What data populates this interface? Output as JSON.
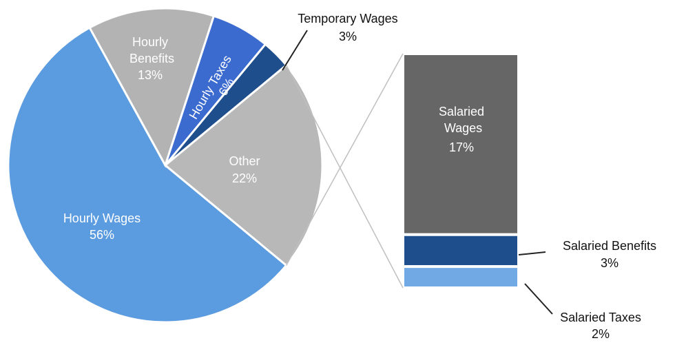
{
  "chart_data": {
    "type": "pie",
    "categories": [
      "Hourly Wages",
      "Hourly Benefits",
      "Hourly Taxes",
      "Temporary Wages",
      "Other"
    ],
    "values": [
      56,
      13,
      6,
      3,
      22
    ],
    "value_labels": [
      "56%",
      "13%",
      "6%",
      "3%",
      "22%"
    ],
    "colors": [
      "#5b9be0",
      "#b3b3b3",
      "#3c6bd0",
      "#1f4e8c",
      "#b8b8b8"
    ],
    "breakout": {
      "categories": [
        "Salaried Wages",
        "Salaried Benefits",
        "Salaried Taxes"
      ],
      "values": [
        17,
        3,
        2
      ],
      "value_labels": [
        "17%",
        "3%",
        "2%"
      ],
      "colors": [
        "#666666",
        "#1f4e8c",
        "#70a9e3"
      ]
    }
  }
}
